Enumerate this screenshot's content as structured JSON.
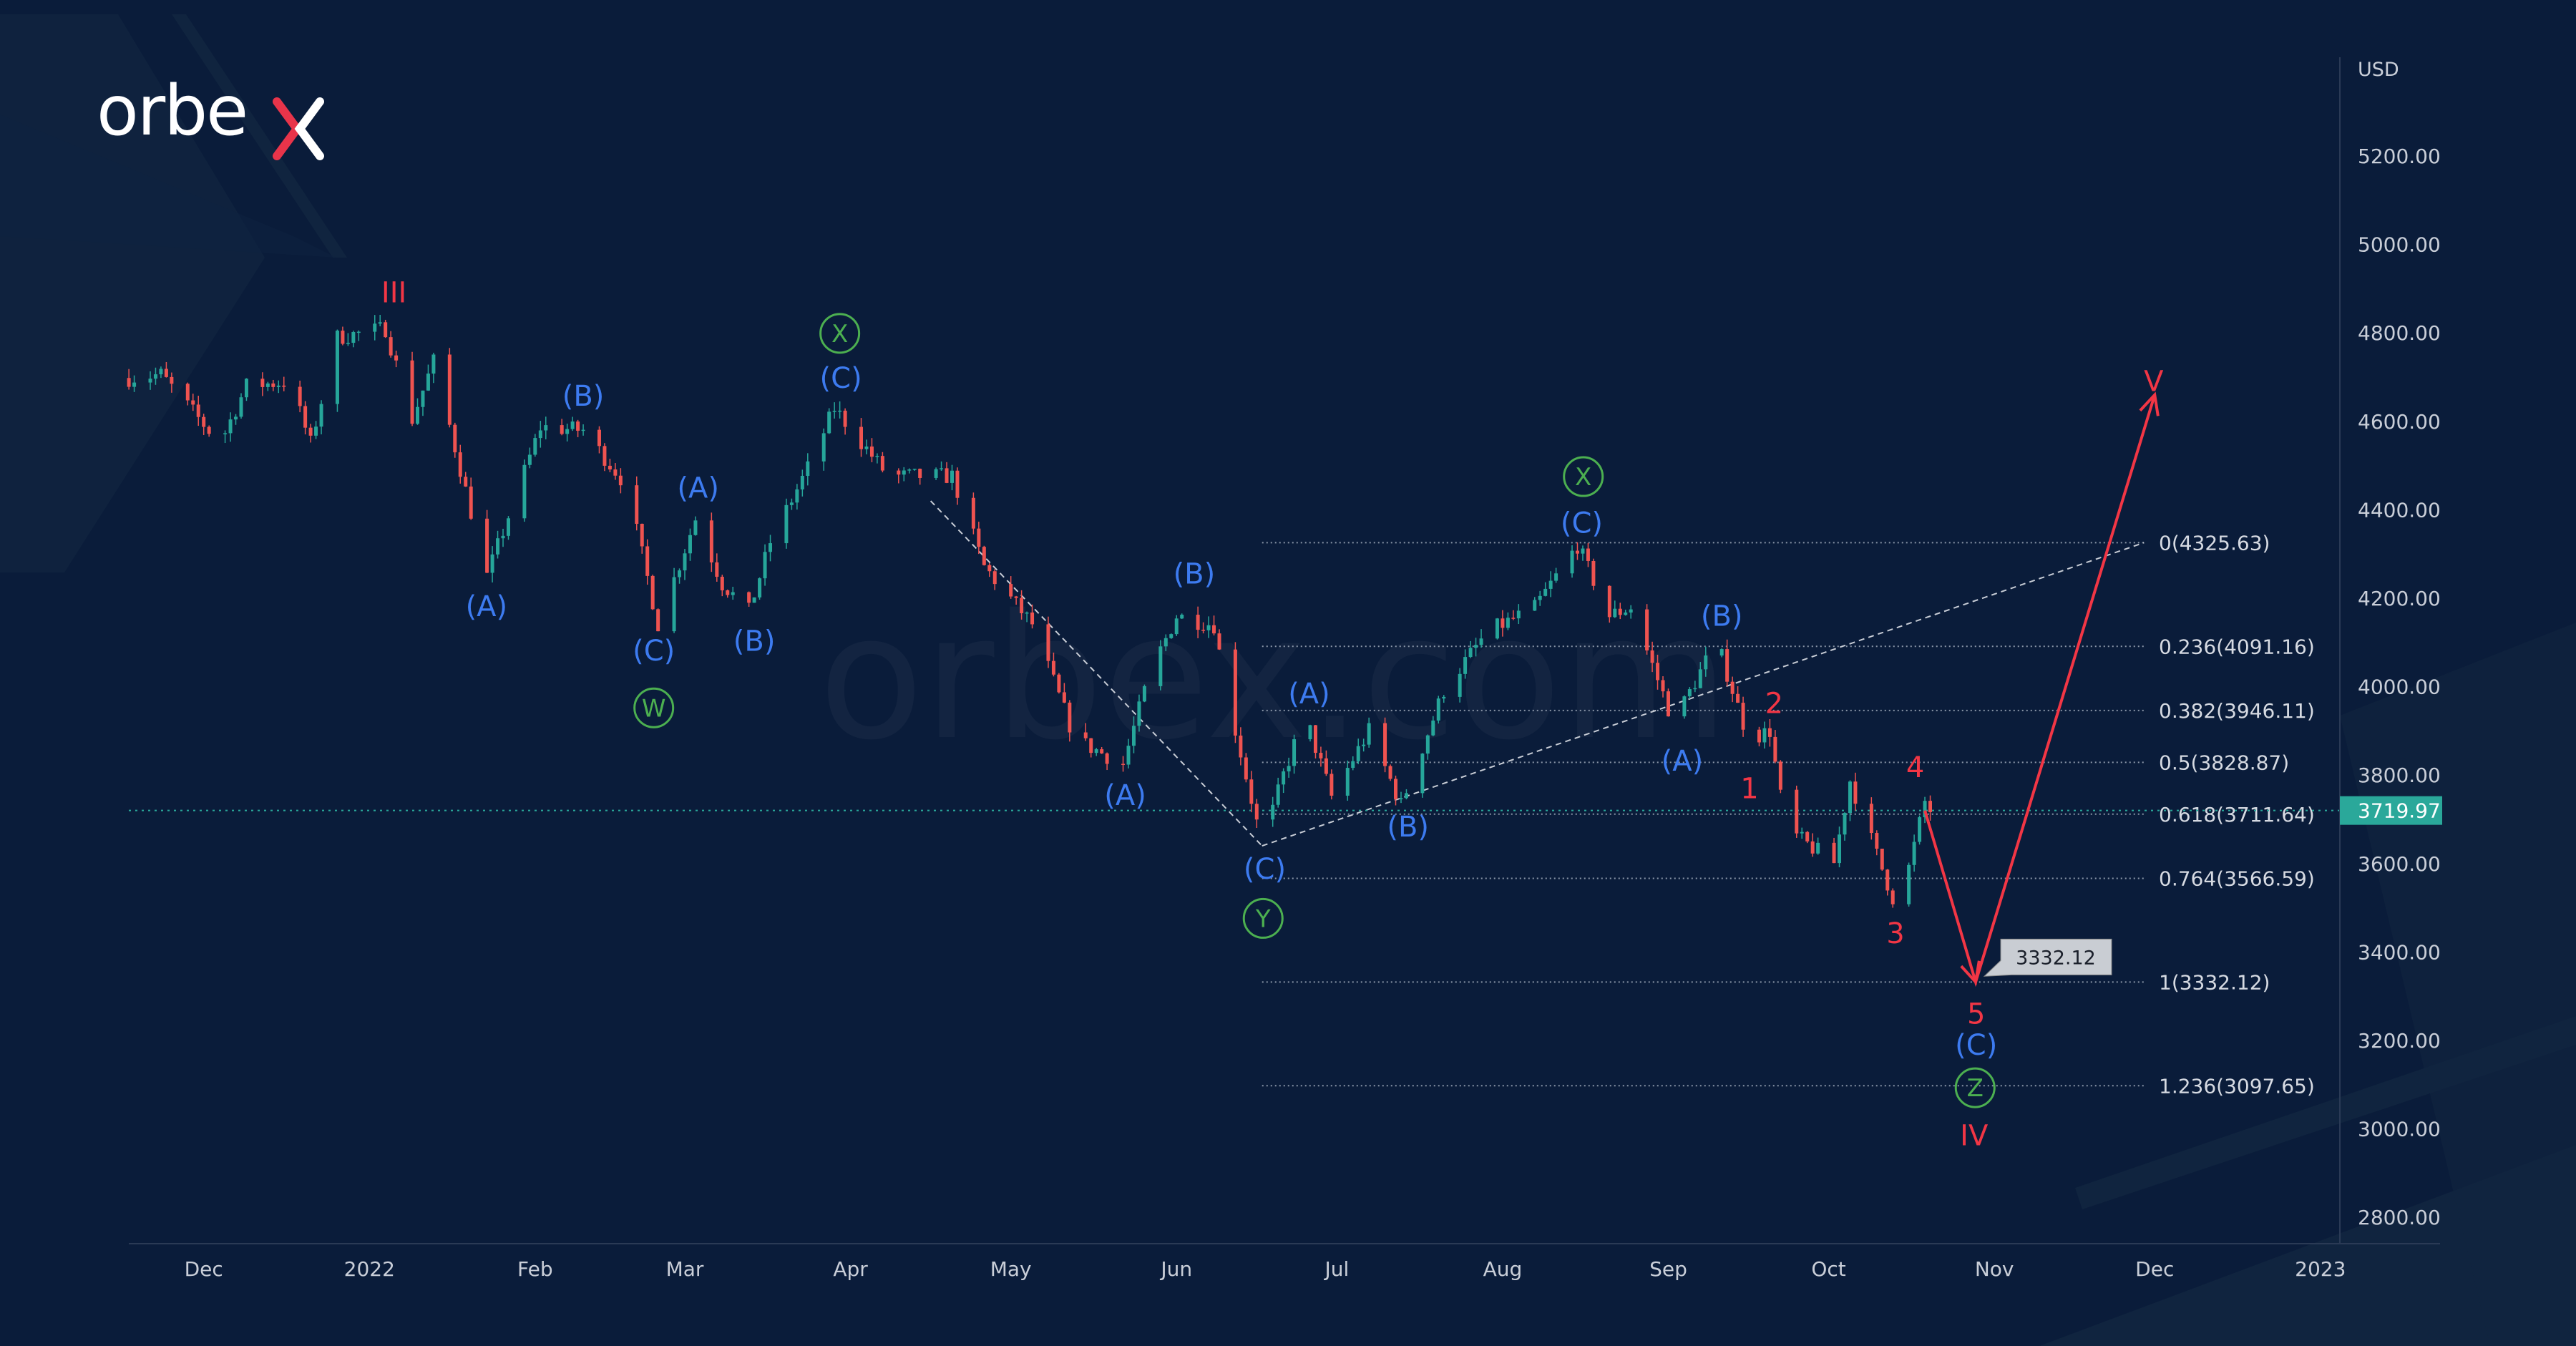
{
  "brand": {
    "logo_text": "orbex",
    "watermark": "orbex.com"
  },
  "colors": {
    "bg": "#0a1c3a",
    "up": "#26a69a",
    "down": "#ef5350",
    "wave_blue": "#3d7bf0",
    "wave_green": "#4caf50",
    "wave_red": "#f23645",
    "last_price_bg": "#2aa89a",
    "text": "#c9ced8"
  },
  "chart_data": {
    "type": "candlestick",
    "title": "",
    "currency_label": "USD",
    "ylim": [
      2700,
      5350
    ],
    "y_ticks": [
      "2800.00",
      "3000.00",
      "3200.00",
      "3400.00",
      "3600.00",
      "3800.00",
      "4000.00",
      "4200.00",
      "4400.00",
      "4600.00",
      "4800.00",
      "5000.00",
      "5200.00"
    ],
    "x_ticks": [
      {
        "label": "Dec",
        "day": 0
      },
      {
        "label": "2022",
        "day": 31
      },
      {
        "label": "Feb",
        "day": 62
      },
      {
        "label": "Mar",
        "day": 90
      },
      {
        "label": "Apr",
        "day": 121
      },
      {
        "label": "May",
        "day": 151
      },
      {
        "label": "Jun",
        "day": 182
      },
      {
        "label": "Jul",
        "day": 212
      },
      {
        "label": "Aug",
        "day": 243
      },
      {
        "label": "Sep",
        "day": 274
      },
      {
        "label": "Oct",
        "day": 304
      },
      {
        "label": "Nov",
        "day": 335
      },
      {
        "label": "Dec",
        "day": 365
      },
      {
        "label": "2023",
        "day": 396
      }
    ],
    "x_unit": "days since 2021-12-01",
    "price_path": [
      [
        -14,
        4698
      ],
      [
        -8,
        4706
      ],
      [
        3,
        4550
      ],
      [
        8,
        4680
      ],
      [
        16,
        4690
      ],
      [
        20,
        4550
      ],
      [
        25,
        4790
      ],
      [
        34,
        4810
      ],
      [
        39,
        4605
      ],
      [
        43,
        4735
      ],
      [
        53,
        4250
      ],
      [
        63,
        4587
      ],
      [
        71,
        4580
      ],
      [
        79,
        4457
      ],
      [
        85,
        4141
      ],
      [
        92,
        4380
      ],
      [
        97,
        4233
      ],
      [
        102,
        4170
      ],
      [
        106,
        4327
      ],
      [
        113,
        4494
      ],
      [
        118,
        4630
      ],
      [
        128,
        4476
      ],
      [
        140,
        4476
      ],
      [
        146,
        4271
      ],
      [
        155,
        4141
      ],
      [
        163,
        3881
      ],
      [
        172,
        3825
      ],
      [
        177,
        4030
      ],
      [
        182,
        4160
      ],
      [
        189,
        4140
      ],
      [
        192,
        3955
      ],
      [
        198,
        3640
      ],
      [
        202,
        3800
      ],
      [
        206,
        3937
      ],
      [
        211,
        3751
      ],
      [
        218,
        3900
      ],
      [
        224,
        3733
      ],
      [
        232,
        3992
      ],
      [
        240,
        4122
      ],
      [
        249,
        4178
      ],
      [
        257,
        4320
      ],
      [
        263,
        4160
      ],
      [
        267,
        4180
      ],
      [
        275,
        3918
      ],
      [
        283,
        4104
      ],
      [
        289,
        3881
      ],
      [
        293,
        3900
      ],
      [
        296,
        3677
      ],
      [
        305,
        3602
      ],
      [
        308,
        3788
      ],
      [
        313,
        3620
      ],
      [
        317,
        3491
      ],
      [
        322,
        3740
      ],
      [
        323,
        3720
      ]
    ],
    "last_price": "3719.97",
    "fibonacci": [
      {
        "label": "0(4325.63)",
        "price": 4325.63
      },
      {
        "label": "0.236(4091.16)",
        "price": 4091.16
      },
      {
        "label": "0.382(3946.11)",
        "price": 3946.11
      },
      {
        "label": "0.5(3828.87)",
        "price": 3828.87
      },
      {
        "label": "0.618(3711.64)",
        "price": 3711.64
      },
      {
        "label": "0.764(3566.59)",
        "price": 3566.59
      },
      {
        "label": "1(3332.12)",
        "price": 3332.12
      },
      {
        "label": "1.236(3097.65)",
        "price": 3097.65
      }
    ],
    "fib_range_days": [
      198,
      363
    ],
    "trend_lines": [
      [
        [
          198,
          3640
        ],
        [
          363,
          4325.63
        ]
      ],
      [
        [
          136,
          4420
        ],
        [
          198,
          3640
        ]
      ]
    ],
    "forecast_path": [
      [
        322,
        3720
      ],
      [
        331.5,
        3332.12
      ],
      [
        365,
        4660
      ]
    ],
    "target_label": "3332.12",
    "target_point": [
      331.5,
      3332.12
    ],
    "wave_labels": [
      {
        "text": "III",
        "style": "red",
        "day": 35.6,
        "price": 4892
      },
      {
        "text": "(A)",
        "style": "blue",
        "day": 52.9,
        "price": 4182
      },
      {
        "text": "(B)",
        "style": "blue",
        "day": 71,
        "price": 4658
      },
      {
        "text": "(C)",
        "style": "blue",
        "day": 84.2,
        "price": 4082
      },
      {
        "text": "W",
        "style": "green",
        "day": 84.2,
        "price": 3952
      },
      {
        "text": "(A)",
        "style": "blue",
        "day": 92.5,
        "price": 4450
      },
      {
        "text": "(B)",
        "style": "blue",
        "day": 103,
        "price": 4104
      },
      {
        "text": "X",
        "style": "green",
        "day": 119,
        "price": 4799
      },
      {
        "text": "(C)",
        "style": "blue",
        "day": 119.2,
        "price": 4698
      },
      {
        "text": "(A)",
        "style": "blue",
        "day": 172.4,
        "price": 3755
      },
      {
        "text": "(B)",
        "style": "blue",
        "day": 185.3,
        "price": 4256
      },
      {
        "text": "(C)",
        "style": "blue",
        "day": 198.5,
        "price": 3588
      },
      {
        "text": "Y",
        "style": "green",
        "day": 198.2,
        "price": 3476
      },
      {
        "text": "(A)",
        "style": "blue",
        "day": 206.8,
        "price": 3985
      },
      {
        "text": "(B)",
        "style": "blue",
        "day": 225.3,
        "price": 3684
      },
      {
        "text": "X",
        "style": "green",
        "day": 258.1,
        "price": 4475
      },
      {
        "text": "(C)",
        "style": "blue",
        "day": 257.8,
        "price": 4371
      },
      {
        "text": "(A)",
        "style": "blue",
        "day": 276.6,
        "price": 3833
      },
      {
        "text": "(B)",
        "style": "blue",
        "day": 284,
        "price": 4160
      },
      {
        "text": "1",
        "style": "red",
        "day": 289.2,
        "price": 3770
      },
      {
        "text": "2",
        "style": "red",
        "day": 293.8,
        "price": 3963
      },
      {
        "text": "3",
        "style": "red",
        "day": 316.5,
        "price": 3443
      },
      {
        "text": "4",
        "style": "red",
        "day": 320.2,
        "price": 3818
      },
      {
        "text": "5",
        "style": "red",
        "day": 331.6,
        "price": 3261
      },
      {
        "text": "(C)",
        "style": "blue",
        "day": 331.6,
        "price": 3190
      },
      {
        "text": "Z",
        "style": "green",
        "day": 331.4,
        "price": 3093
      },
      {
        "text": "IV",
        "style": "red",
        "day": 331.2,
        "price": 2986
      },
      {
        "text": "V",
        "style": "red",
        "day": 364.8,
        "price": 4691
      }
    ]
  }
}
